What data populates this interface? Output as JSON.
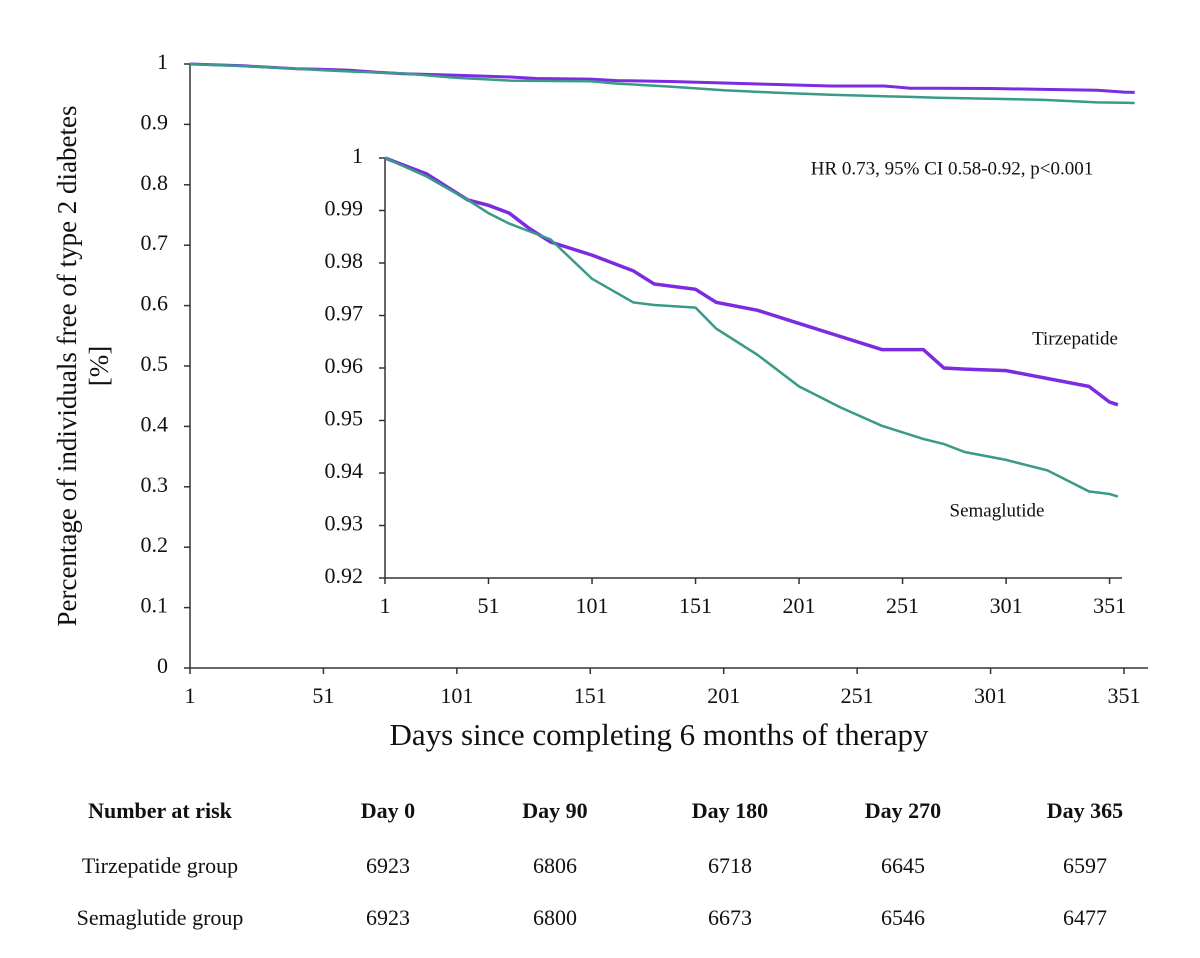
{
  "chart_data": [
    {
      "type": "line",
      "ylabel": [
        "Percentage of individuals free of type 2 diabetes",
        "[%]"
      ],
      "xlabel": "Days since completing 6 months of therapy",
      "x": [
        1,
        21,
        41,
        51,
        61,
        71,
        81,
        101,
        121,
        131,
        151,
        161,
        181,
        201,
        221,
        241,
        261,
        271,
        281,
        301,
        321,
        341,
        351,
        355
      ],
      "series": [
        {
          "color": "#7b2be0",
          "values": [
            1,
            0.997,
            0.992,
            0.991,
            0.9895,
            0.9865,
            0.984,
            0.9815,
            0.9785,
            0.976,
            0.975,
            0.9725,
            0.971,
            0.9685,
            0.966,
            0.9635,
            0.9635,
            0.96,
            0.9598,
            0.9595,
            0.958,
            0.9565,
            0.9535,
            0.953
          ]
        },
        {
          "color": "#3a9a88",
          "values": [
            1,
            0.9965,
            0.992,
            0.9895,
            0.9875,
            0.986,
            0.9845,
            0.977,
            0.9725,
            0.972,
            0.9715,
            0.9675,
            0.9625,
            0.9565,
            0.9525,
            0.949,
            0.9465,
            0.9455,
            0.944,
            0.9425,
            0.9405,
            0.9365,
            0.936,
            0.9355
          ]
        }
      ],
      "xlim": [
        1,
        360
      ],
      "xticks": [
        1,
        51,
        101,
        151,
        201,
        251,
        301,
        351
      ],
      "ylim": [
        0,
        1
      ],
      "yticks": [
        0,
        0.1,
        0.2,
        0.3,
        0.4,
        0.5,
        0.6,
        0.7,
        0.8,
        0.9,
        1
      ]
    },
    {
      "type": "line",
      "annotation": "HR 0.73, 95% CI 0.58-0.92, p<0.001",
      "x": [
        1,
        21,
        41,
        51,
        61,
        71,
        81,
        101,
        121,
        131,
        151,
        161,
        181,
        201,
        221,
        241,
        261,
        271,
        281,
        301,
        321,
        341,
        351,
        355
      ],
      "series": [
        {
          "name": "Tirzepatide",
          "color": "#7b2be0",
          "values": [
            1,
            0.997,
            0.992,
            0.991,
            0.9895,
            0.9865,
            0.984,
            0.9815,
            0.9785,
            0.976,
            0.975,
            0.9725,
            0.971,
            0.9685,
            0.966,
            0.9635,
            0.9635,
            0.96,
            0.9598,
            0.9595,
            0.958,
            0.9565,
            0.9535,
            0.953
          ]
        },
        {
          "name": "Semaglutide",
          "color": "#3a9a88",
          "values": [
            1,
            0.9965,
            0.992,
            0.9895,
            0.9875,
            0.986,
            0.9845,
            0.977,
            0.9725,
            0.972,
            0.9715,
            0.9675,
            0.9625,
            0.9565,
            0.9525,
            0.949,
            0.9465,
            0.9455,
            0.944,
            0.9425,
            0.9405,
            0.9365,
            0.936,
            0.9355
          ]
        }
      ],
      "xlim": [
        1,
        357
      ],
      "xticks": [
        1,
        51,
        101,
        151,
        201,
        251,
        301,
        351
      ],
      "ylim": [
        0.92,
        1
      ],
      "yticks": [
        0.92,
        0.93,
        0.94,
        0.95,
        0.96,
        0.97,
        0.98,
        0.99,
        1
      ]
    }
  ],
  "table": {
    "header": [
      "Number at risk",
      "Day 0",
      "Day 90",
      "Day 180",
      "Day 270",
      "Day 365"
    ],
    "rows": [
      [
        "Tirzepatide group",
        "6923",
        "6806",
        "6718",
        "6645",
        "6597"
      ],
      [
        "Semaglutide group",
        "6923",
        "6800",
        "6673",
        "6546",
        "6477"
      ]
    ]
  }
}
